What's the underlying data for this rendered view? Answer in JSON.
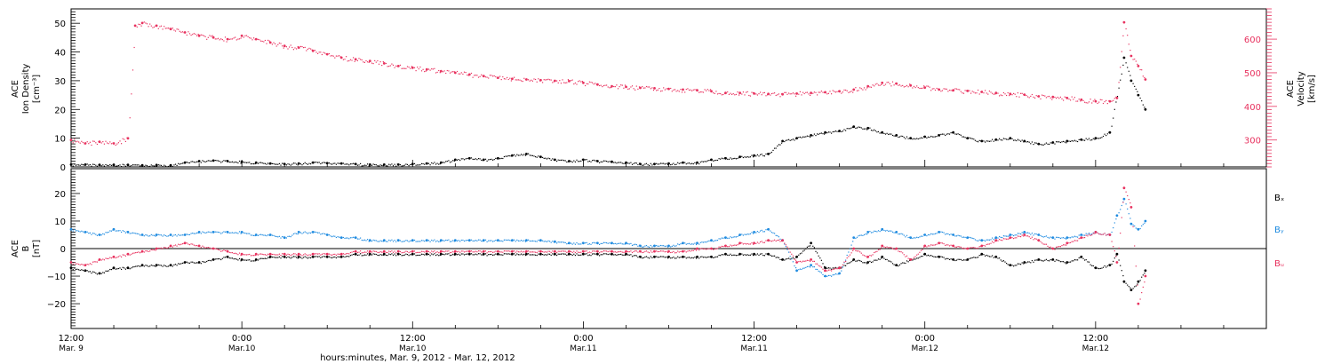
{
  "colors": {
    "black": "#000000",
    "red": "#e8325f",
    "blue": "#1f8be0",
    "frame": "#000000"
  },
  "chart_data": [
    {
      "type": "scatter",
      "panel": "top",
      "ylabel_lines": [
        "ACE",
        "Ion Density",
        "[cm⁻³]"
      ],
      "y2label_lines": [
        "ACE",
        "Velocity",
        "[km/s]"
      ],
      "ylim": [
        0,
        55
      ],
      "y2lim": [
        220,
        690
      ],
      "yticks": [
        0,
        10,
        20,
        30,
        40,
        50
      ],
      "y2ticks": [
        300,
        400,
        500,
        600
      ],
      "ytick_labels": [
        "0",
        "10",
        "20",
        "30",
        "40",
        "50"
      ],
      "y2tick_labels": [
        "300",
        "400",
        "500",
        "600"
      ],
      "series": [
        {
          "key": "density",
          "color": "black",
          "axis": "left",
          "x": [
            0,
            1,
            2,
            3,
            4,
            5,
            6,
            7,
            8,
            9,
            10,
            11,
            12,
            13,
            14,
            15,
            16,
            17,
            18,
            19,
            20,
            21,
            22,
            23,
            24,
            25,
            26,
            27,
            28,
            29,
            30,
            31,
            32,
            33,
            34,
            35,
            36,
            37,
            38,
            39,
            40,
            41,
            42,
            43,
            44,
            45,
            46,
            47,
            48,
            49,
            50,
            51,
            52,
            53,
            54,
            55,
            56,
            57,
            58,
            59,
            60,
            61,
            62,
            63,
            64,
            65,
            66,
            67,
            68,
            69,
            70,
            71,
            72,
            73,
            74,
            74.5,
            75,
            75.5
          ],
          "y": [
            0.8,
            0.8,
            0.7,
            0.7,
            0.7,
            0.6,
            0.6,
            0.6,
            1.5,
            2.0,
            2.2,
            2.0,
            1.8,
            1.5,
            1.2,
            1.0,
            1.2,
            1.5,
            1.3,
            1.2,
            1.0,
            0.8,
            0.8,
            0.8,
            1.0,
            1.2,
            1.5,
            2.5,
            3.0,
            2.5,
            3.0,
            4.0,
            4.5,
            3.5,
            2.5,
            2.0,
            2.5,
            2.0,
            1.8,
            1.5,
            1.0,
            1.0,
            1.2,
            1.5,
            1.5,
            2.5,
            3.0,
            3.5,
            4.0,
            4.5,
            9.0,
            10.0,
            11.0,
            12.0,
            12.5,
            14.0,
            13.5,
            12.0,
            11.0,
            10.0,
            10.5,
            11.0,
            12.0,
            10.0,
            9.0,
            9.5,
            10.0,
            9.0,
            8.0,
            8.5,
            9.0,
            9.5,
            10.0,
            12.0,
            38.0,
            30.0,
            25.0,
            20.0
          ]
        },
        {
          "key": "velocity",
          "color": "red",
          "axis": "right",
          "x": [
            0,
            1,
            2,
            3,
            4,
            4.5,
            5,
            6,
            7,
            8,
            9,
            10,
            11,
            12,
            13,
            14,
            15,
            16,
            17,
            18,
            19,
            20,
            21,
            22,
            23,
            24,
            25,
            26,
            27,
            28,
            29,
            30,
            31,
            32,
            33,
            34,
            35,
            36,
            37,
            38,
            39,
            40,
            41,
            42,
            43,
            44,
            45,
            46,
            47,
            48,
            49,
            50,
            51,
            52,
            53,
            54,
            55,
            56,
            57,
            58,
            59,
            60,
            61,
            62,
            63,
            64,
            65,
            66,
            67,
            68,
            69,
            70,
            71,
            72,
            73,
            73.5,
            74,
            74.5,
            75,
            75.5
          ],
          "y": [
            300,
            290,
            295,
            290,
            305,
            640,
            648,
            640,
            630,
            620,
            610,
            605,
            600,
            610,
            600,
            590,
            580,
            575,
            565,
            555,
            545,
            540,
            535,
            528,
            520,
            515,
            510,
            505,
            500,
            495,
            490,
            485,
            482,
            480,
            478,
            476,
            475,
            470,
            465,
            460,
            458,
            455,
            454,
            452,
            450,
            448,
            445,
            440,
            440,
            438,
            437,
            436,
            438,
            440,
            442,
            445,
            450,
            460,
            470,
            468,
            462,
            456,
            450,
            448,
            446,
            443,
            440,
            437,
            435,
            430,
            428,
            425,
            420,
            415,
            415,
            425,
            650,
            550,
            520,
            480
          ]
        }
      ]
    },
    {
      "type": "scatter",
      "panel": "bottom",
      "ylabel_lines": [
        "ACE",
        "B",
        "[nT]"
      ],
      "ylim": [
        -29,
        29
      ],
      "yticks": [
        -20,
        -10,
        0,
        10,
        20
      ],
      "ytick_labels": [
        "−20",
        "−10",
        "0",
        "10",
        "20"
      ],
      "zero_line": true,
      "legend_position": "right",
      "series": [
        {
          "key": "bx",
          "name": "Bₓ",
          "color": "black",
          "x": [
            0,
            1,
            2,
            3,
            4,
            5,
            6,
            7,
            8,
            9,
            10,
            11,
            12,
            13,
            14,
            15,
            16,
            17,
            18,
            19,
            20,
            21,
            22,
            23,
            24,
            25,
            26,
            27,
            28,
            29,
            30,
            31,
            32,
            33,
            34,
            35,
            36,
            37,
            38,
            39,
            40,
            41,
            42,
            43,
            44,
            45,
            46,
            47,
            48,
            49,
            50,
            51,
            52,
            53,
            54,
            55,
            56,
            57,
            58,
            59,
            60,
            61,
            62,
            63,
            64,
            65,
            66,
            67,
            68,
            69,
            70,
            71,
            72,
            73,
            73.5,
            74,
            74.5,
            75,
            75.5
          ],
          "y": [
            -7,
            -8,
            -9,
            -7,
            -7,
            -6,
            -6,
            -6,
            -5,
            -5,
            -4,
            -3,
            -4,
            -4,
            -3,
            -3,
            -3,
            -3,
            -3,
            -3,
            -2,
            -2,
            -2,
            -2,
            -2,
            -2,
            -2,
            -2,
            -2,
            -2,
            -2,
            -2,
            -2,
            -2,
            -2,
            -2,
            -2,
            -2,
            -2,
            -2,
            -3,
            -3,
            -3,
            -3,
            -3,
            -3,
            -2,
            -2,
            -2,
            -2,
            -4,
            -3,
            2,
            -7,
            -7,
            -4,
            -5,
            -3,
            -6,
            -4,
            -2,
            -3,
            -4,
            -4,
            -2,
            -3,
            -6,
            -5,
            -4,
            -4,
            -5,
            -3,
            -7,
            -6,
            -2,
            -12,
            -15,
            -12,
            -8
          ]
        },
        {
          "key": "by",
          "name": "Bᵧ",
          "color": "blue",
          "x": [
            0,
            1,
            2,
            3,
            4,
            5,
            6,
            7,
            8,
            9,
            10,
            11,
            12,
            13,
            14,
            15,
            16,
            17,
            18,
            19,
            20,
            21,
            22,
            23,
            24,
            25,
            26,
            27,
            28,
            29,
            30,
            31,
            32,
            33,
            34,
            35,
            36,
            37,
            38,
            39,
            40,
            41,
            42,
            43,
            44,
            45,
            46,
            47,
            48,
            49,
            50,
            51,
            52,
            53,
            54,
            55,
            56,
            57,
            58,
            59,
            60,
            61,
            62,
            63,
            64,
            65,
            66,
            67,
            68,
            69,
            70,
            71,
            72,
            73,
            73.5,
            74,
            74.5,
            75,
            75.5
          ],
          "y": [
            7,
            6,
            5,
            7,
            6,
            5,
            5,
            5,
            5,
            6,
            6,
            6,
            6,
            5,
            5,
            4,
            6,
            6,
            5,
            4,
            4,
            3,
            3,
            3,
            3,
            3,
            3,
            3,
            3,
            3,
            3,
            3,
            3,
            3,
            2.5,
            2,
            2,
            2,
            2,
            2,
            1,
            1,
            1,
            2,
            2,
            3,
            4,
            5,
            6,
            7,
            3,
            -8,
            -6,
            -10,
            -9,
            4,
            6,
            7,
            6,
            4,
            5,
            6,
            5,
            4,
            3,
            4,
            5,
            6,
            5,
            4,
            4,
            5,
            6,
            5,
            12,
            18,
            9,
            7,
            10
          ]
        },
        {
          "key": "bz",
          "name": "Bᵤ",
          "color": "red",
          "x": [
            0,
            1,
            2,
            3,
            4,
            5,
            6,
            7,
            8,
            9,
            10,
            11,
            12,
            13,
            14,
            15,
            16,
            17,
            18,
            19,
            20,
            21,
            22,
            23,
            24,
            25,
            26,
            27,
            28,
            29,
            30,
            31,
            32,
            33,
            34,
            35,
            36,
            37,
            38,
            39,
            40,
            41,
            42,
            43,
            44,
            45,
            46,
            47,
            48,
            49,
            50,
            51,
            52,
            53,
            54,
            55,
            56,
            57,
            58,
            59,
            60,
            61,
            62,
            63,
            64,
            65,
            66,
            67,
            68,
            69,
            70,
            71,
            72,
            73,
            73.5,
            74,
            74.5,
            75,
            75.5
          ],
          "y": [
            -5,
            -6,
            -4,
            -3,
            -2,
            -1,
            0,
            1,
            2,
            1,
            0,
            -1,
            -2,
            -2,
            -2,
            -2,
            -2,
            -2,
            -2,
            -2,
            -1,
            -1,
            -1,
            -1,
            -1,
            -1,
            -1,
            -1,
            -1,
            -1,
            -1,
            -1,
            -1,
            -1,
            -1,
            -1,
            -1,
            -1,
            -1,
            -1,
            -1,
            -1,
            -1,
            -1,
            0,
            0,
            1,
            2,
            2,
            3,
            3,
            -5,
            -4,
            -8,
            -7,
            0,
            -3,
            1,
            0,
            -4,
            1,
            2,
            1,
            0,
            1,
            3,
            4,
            5,
            3,
            0,
            2,
            4,
            6,
            5,
            -5,
            22,
            15,
            -20,
            -10
          ]
        }
      ]
    }
  ],
  "x_axis": {
    "range_hours": [
      0,
      84
    ],
    "major_ticks": [
      {
        "h": 0,
        "time": "12:00",
        "date": "Mar. 9"
      },
      {
        "h": 12,
        "time": "0:00",
        "date": "Mar.10"
      },
      {
        "h": 24,
        "time": "12:00",
        "date": "Mar.10"
      },
      {
        "h": 36,
        "time": "0:00",
        "date": "Mar.11"
      },
      {
        "h": 48,
        "time": "12:00",
        "date": "Mar.11"
      },
      {
        "h": 60,
        "time": "0:00",
        "date": "Mar.12"
      },
      {
        "h": 72,
        "time": "12:00",
        "date": "Mar.12"
      }
    ],
    "title": "hours:minutes,  Mar.  9, 2012 - Mar. 12, 2012"
  }
}
